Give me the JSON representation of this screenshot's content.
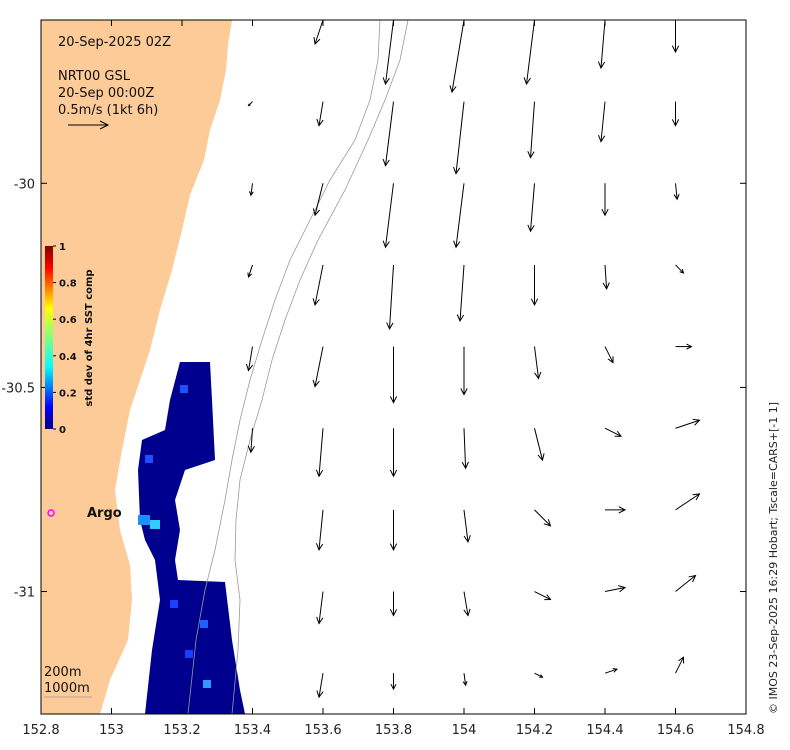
{
  "map": {
    "date_label": "20-Sep-2025 02Z",
    "source_label": "NRT00 GSL",
    "source_time": "20-Sep 00:00Z",
    "scale_label": "0.5m/s (1kt 6h)",
    "isobath_labels": [
      "200m",
      "1000m"
    ],
    "argo_label": "Argo",
    "credit": "© IMOS 23-Sep-2025 16:29 Hobart; Tscale=CARS+[-1 1]",
    "colors": {
      "land": "#fdcb98",
      "argo_marker": "#ff00ff",
      "contour": "#999999",
      "arrow": "#000000"
    }
  },
  "colorbar": {
    "label": "std dev of 4hr SST comp",
    "ticks": [
      "0",
      "0.2",
      "0.4",
      "0.6",
      "0.8",
      "1"
    ]
  },
  "axes": {
    "x_ticks": [
      "152.8",
      "153",
      "153.2",
      "153.4",
      "153.6",
      "153.8",
      "154",
      "154.2",
      "154.4",
      "154.6",
      "154.8"
    ],
    "y_ticks": [
      "-30",
      "-30.5",
      "-31"
    ]
  },
  "chart_data": {
    "type": "map",
    "xlim": [
      152.8,
      154.8
    ],
    "ylim": [
      -31.3,
      -29.6
    ],
    "velocity_scale_ms": 0.5,
    "argo_float": {
      "lon": 152.83,
      "lat": -30.8
    },
    "currents": [
      {
        "lon": 153.6,
        "lat": -29.6,
        "u": -0.1,
        "v": -0.3
      },
      {
        "lon": 153.8,
        "lat": -29.6,
        "u": -0.1,
        "v": -0.8
      },
      {
        "lon": 154.0,
        "lat": -29.6,
        "u": -0.15,
        "v": -0.9
      },
      {
        "lon": 154.2,
        "lat": -29.6,
        "u": -0.1,
        "v": -0.8
      },
      {
        "lon": 154.4,
        "lat": -29.6,
        "u": -0.05,
        "v": -0.6
      },
      {
        "lon": 154.6,
        "lat": -29.6,
        "u": 0.0,
        "v": -0.4
      },
      {
        "lon": 153.4,
        "lat": -29.8,
        "u": -0.05,
        "v": -0.05
      },
      {
        "lon": 153.6,
        "lat": -29.8,
        "u": -0.05,
        "v": -0.3
      },
      {
        "lon": 153.8,
        "lat": -29.8,
        "u": -0.1,
        "v": -0.8
      },
      {
        "lon": 154.0,
        "lat": -29.8,
        "u": -0.1,
        "v": -0.9
      },
      {
        "lon": 154.2,
        "lat": -29.8,
        "u": -0.05,
        "v": -0.7
      },
      {
        "lon": 154.4,
        "lat": -29.8,
        "u": -0.05,
        "v": -0.5
      },
      {
        "lon": 154.6,
        "lat": -29.8,
        "u": 0.0,
        "v": -0.3
      },
      {
        "lon": 153.4,
        "lat": -30.0,
        "u": -0.02,
        "v": -0.15
      },
      {
        "lon": 153.6,
        "lat": -30.0,
        "u": -0.1,
        "v": -0.4
      },
      {
        "lon": 153.8,
        "lat": -30.0,
        "u": -0.1,
        "v": -0.8
      },
      {
        "lon": 154.0,
        "lat": -30.0,
        "u": -0.1,
        "v": -0.8
      },
      {
        "lon": 154.2,
        "lat": -30.0,
        "u": -0.05,
        "v": -0.6
      },
      {
        "lon": 154.4,
        "lat": -30.0,
        "u": 0.0,
        "v": -0.4
      },
      {
        "lon": 154.6,
        "lat": -30.0,
        "u": 0.02,
        "v": -0.2
      },
      {
        "lon": 153.4,
        "lat": -30.2,
        "u": -0.05,
        "v": -0.15
      },
      {
        "lon": 153.6,
        "lat": -30.2,
        "u": -0.1,
        "v": -0.5
      },
      {
        "lon": 153.8,
        "lat": -30.2,
        "u": -0.05,
        "v": -0.8
      },
      {
        "lon": 154.0,
        "lat": -30.2,
        "u": -0.05,
        "v": -0.7
      },
      {
        "lon": 154.2,
        "lat": -30.2,
        "u": 0.0,
        "v": -0.5
      },
      {
        "lon": 154.4,
        "lat": -30.2,
        "u": 0.02,
        "v": -0.3
      },
      {
        "lon": 154.6,
        "lat": -30.2,
        "u": 0.1,
        "v": -0.1
      },
      {
        "lon": 153.4,
        "lat": -30.4,
        "u": -0.05,
        "v": -0.3
      },
      {
        "lon": 153.6,
        "lat": -30.4,
        "u": -0.1,
        "v": -0.5
      },
      {
        "lon": 153.8,
        "lat": -30.4,
        "u": 0.0,
        "v": -0.7
      },
      {
        "lon": 154.0,
        "lat": -30.4,
        "u": 0.0,
        "v": -0.6
      },
      {
        "lon": 154.2,
        "lat": -30.4,
        "u": 0.05,
        "v": -0.4
      },
      {
        "lon": 154.4,
        "lat": -30.4,
        "u": 0.1,
        "v": -0.2
      },
      {
        "lon": 154.6,
        "lat": -30.4,
        "u": 0.2,
        "v": 0.0
      },
      {
        "lon": 153.4,
        "lat": -30.6,
        "u": -0.02,
        "v": -0.3
      },
      {
        "lon": 153.6,
        "lat": -30.6,
        "u": -0.05,
        "v": -0.6
      },
      {
        "lon": 153.8,
        "lat": -30.6,
        "u": 0.0,
        "v": -0.6
      },
      {
        "lon": 154.0,
        "lat": -30.6,
        "u": 0.02,
        "v": -0.5
      },
      {
        "lon": 154.2,
        "lat": -30.6,
        "u": 0.1,
        "v": -0.4
      },
      {
        "lon": 154.4,
        "lat": -30.6,
        "u": 0.2,
        "v": -0.1
      },
      {
        "lon": 154.6,
        "lat": -30.6,
        "u": 0.3,
        "v": 0.1
      },
      {
        "lon": 153.6,
        "lat": -30.8,
        "u": -0.05,
        "v": -0.5
      },
      {
        "lon": 153.8,
        "lat": -30.8,
        "u": 0.0,
        "v": -0.5
      },
      {
        "lon": 154.0,
        "lat": -30.8,
        "u": 0.05,
        "v": -0.4
      },
      {
        "lon": 154.2,
        "lat": -30.8,
        "u": 0.2,
        "v": -0.2
      },
      {
        "lon": 154.4,
        "lat": -30.8,
        "u": 0.25,
        "v": 0.0
      },
      {
        "lon": 154.6,
        "lat": -30.8,
        "u": 0.3,
        "v": 0.2
      },
      {
        "lon": 153.6,
        "lat": -31.0,
        "u": -0.05,
        "v": -0.4
      },
      {
        "lon": 153.8,
        "lat": -31.0,
        "u": 0.0,
        "v": -0.3
      },
      {
        "lon": 154.0,
        "lat": -31.0,
        "u": 0.05,
        "v": -0.3
      },
      {
        "lon": 154.2,
        "lat": -31.0,
        "u": 0.2,
        "v": -0.1
      },
      {
        "lon": 154.4,
        "lat": -31.0,
        "u": 0.25,
        "v": 0.05
      },
      {
        "lon": 154.6,
        "lat": -31.0,
        "u": 0.25,
        "v": 0.2
      },
      {
        "lon": 153.6,
        "lat": -31.2,
        "u": -0.05,
        "v": -0.3
      },
      {
        "lon": 153.8,
        "lat": -31.2,
        "u": 0.0,
        "v": -0.2
      },
      {
        "lon": 154.0,
        "lat": -31.2,
        "u": 0.02,
        "v": -0.15
      },
      {
        "lon": 154.2,
        "lat": -31.2,
        "u": 0.1,
        "v": -0.05
      },
      {
        "lon": 154.4,
        "lat": -31.2,
        "u": 0.15,
        "v": 0.05
      },
      {
        "lon": 154.6,
        "lat": -31.2,
        "u": 0.1,
        "v": 0.2
      }
    ]
  }
}
